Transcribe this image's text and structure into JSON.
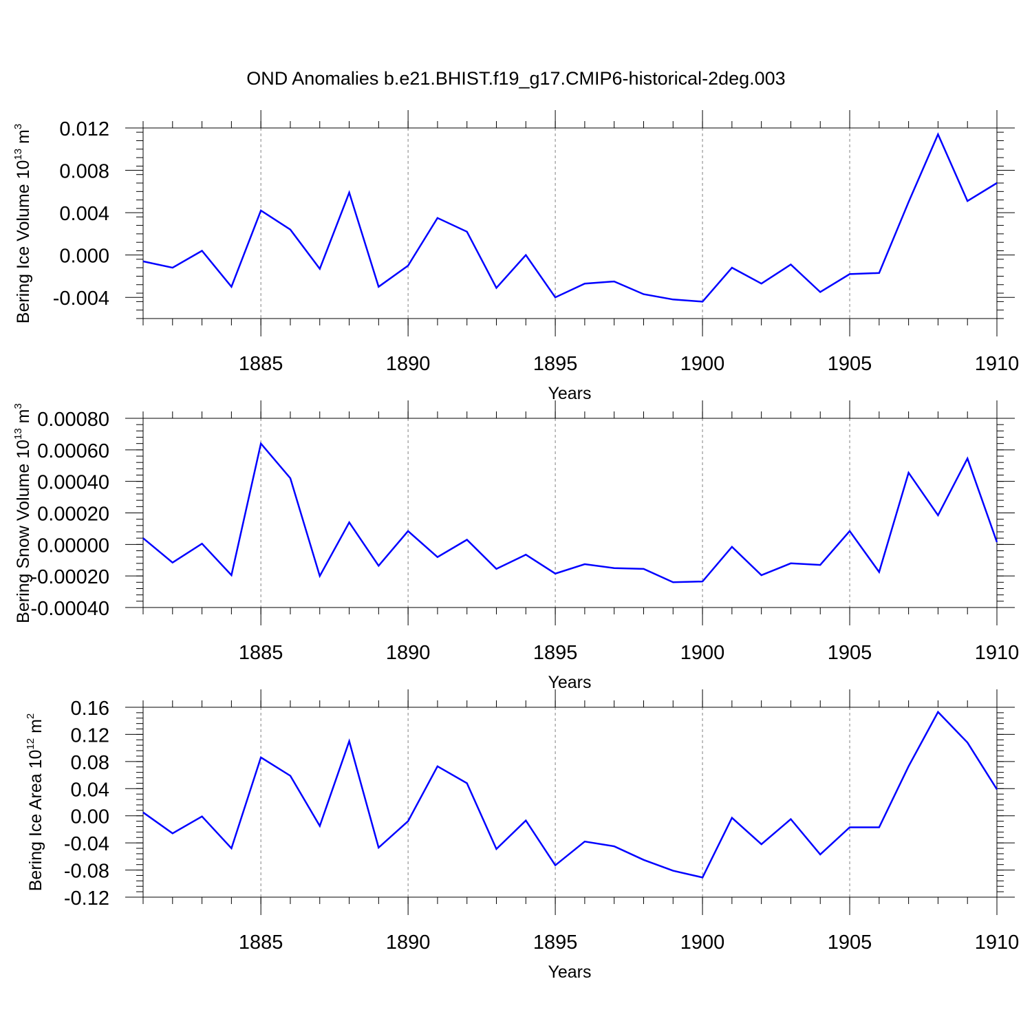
{
  "title": "OND Anomalies b.e21.BHIST.f19_g17.CMIP6-historical-2deg.003",
  "line_color": "#0000ff",
  "chart_data": [
    {
      "type": "line",
      "xlabel": "Years",
      "ylabel_text": "Bering Ice Volume 10",
      "ylabel_exp": "13",
      "ylabel_unit": " m",
      "ylabel_unit_exp": "3",
      "xlim": [
        1881,
        1910
      ],
      "ylim": [
        -0.006,
        0.012
      ],
      "xticks": [
        1885,
        1890,
        1895,
        1900,
        1905,
        1910
      ],
      "xtick_labels": [
        "1885",
        "1890",
        "1895",
        "1900",
        "1905",
        "1910"
      ],
      "yticks": [
        -0.004,
        0.0,
        0.004,
        0.008,
        0.012
      ],
      "ytick_labels": [
        "-0.004",
        "0.000",
        "0.004",
        "0.008",
        "0.012"
      ],
      "x": [
        1881,
        1882,
        1883,
        1884,
        1885,
        1886,
        1887,
        1888,
        1889,
        1890,
        1891,
        1892,
        1893,
        1894,
        1895,
        1896,
        1897,
        1898,
        1899,
        1900,
        1901,
        1902,
        1903,
        1904,
        1905,
        1906,
        1907,
        1908,
        1909,
        1910
      ],
      "series": [
        {
          "values": [
            -0.0006,
            -0.0012,
            0.0004,
            -0.003,
            0.0042,
            0.0024,
            -0.0013,
            0.0059,
            -0.003,
            -0.001,
            0.0035,
            0.0022,
            -0.0031,
            0.0,
            -0.004,
            -0.0027,
            -0.0025,
            -0.0037,
            -0.0042,
            -0.0044,
            -0.0012,
            -0.0027,
            -0.0009,
            -0.0035,
            -0.0018,
            -0.0017,
            0.005,
            0.0114,
            0.0051,
            0.0068
          ]
        }
      ],
      "grid": "vertical dashed at major x ticks",
      "legend": "none"
    },
    {
      "type": "line",
      "xlabel": "Years",
      "ylabel_text": "Bering Snow Volume 10",
      "ylabel_exp": "13",
      "ylabel_unit": " m",
      "ylabel_unit_exp": "3",
      "xlim": [
        1881,
        1910
      ],
      "ylim": [
        -0.0004,
        0.0008
      ],
      "xticks": [
        1885,
        1890,
        1895,
        1900,
        1905,
        1910
      ],
      "xtick_labels": [
        "1885",
        "1890",
        "1895",
        "1900",
        "1905",
        "1910"
      ],
      "yticks": [
        -0.0004,
        -0.0002,
        0.0,
        0.0002,
        0.0004,
        0.0006,
        0.0008
      ],
      "ytick_labels": [
        "-0.00040",
        "-0.00020",
        "0.00000",
        "0.00020",
        "0.00040",
        "0.00060",
        "0.00080"
      ],
      "x": [
        1881,
        1882,
        1883,
        1884,
        1885,
        1886,
        1887,
        1888,
        1889,
        1890,
        1891,
        1892,
        1893,
        1894,
        1895,
        1896,
        1897,
        1898,
        1899,
        1900,
        1901,
        1902,
        1903,
        1904,
        1905,
        1906,
        1907,
        1908,
        1909,
        1910
      ],
      "series": [
        {
          "values": [
            4e-05,
            -0.000115,
            5e-06,
            -0.000195,
            0.00064,
            0.00042,
            -0.0002,
            0.00014,
            -0.000135,
            8.5e-05,
            -8e-05,
            3e-05,
            -0.000155,
            -6.5e-05,
            -0.000185,
            -0.000125,
            -0.00015,
            -0.000155,
            -0.00024,
            -0.000235,
            -1.5e-05,
            -0.000195,
            -0.00012,
            -0.00013,
            8.5e-05,
            -0.000175,
            0.000455,
            0.000185,
            0.000545,
            1.5e-05
          ]
        }
      ],
      "grid": "vertical dashed at major x ticks",
      "legend": "none"
    },
    {
      "type": "line",
      "xlabel": "Years",
      "ylabel_text": "Bering Ice Area 10",
      "ylabel_exp": "12",
      "ylabel_unit": " m",
      "ylabel_unit_exp": "2",
      "xlim": [
        1881,
        1910
      ],
      "ylim": [
        -0.12,
        0.16
      ],
      "xticks": [
        1885,
        1890,
        1895,
        1900,
        1905,
        1910
      ],
      "xtick_labels": [
        "1885",
        "1890",
        "1895",
        "1900",
        "1905",
        "1910"
      ],
      "yticks": [
        -0.12,
        -0.08,
        -0.04,
        0.0,
        0.04,
        0.08,
        0.12,
        0.16
      ],
      "ytick_labels": [
        "-0.12",
        "-0.08",
        "-0.04",
        "0.00",
        "0.04",
        "0.08",
        "0.12",
        "0.16"
      ],
      "x": [
        1881,
        1882,
        1883,
        1884,
        1885,
        1886,
        1887,
        1888,
        1889,
        1890,
        1891,
        1892,
        1893,
        1894,
        1895,
        1896,
        1897,
        1898,
        1899,
        1900,
        1901,
        1902,
        1903,
        1904,
        1905,
        1906,
        1907,
        1908,
        1909,
        1910
      ],
      "series": [
        {
          "values": [
            0.005,
            -0.026,
            -0.001,
            -0.048,
            0.086,
            0.059,
            -0.015,
            0.11,
            -0.047,
            -0.008,
            0.073,
            0.048,
            -0.049,
            -0.007,
            -0.073,
            -0.038,
            -0.045,
            -0.065,
            -0.081,
            -0.091,
            -0.003,
            -0.042,
            -0.005,
            -0.057,
            -0.017,
            -0.017,
            0.073,
            0.153,
            0.108,
            0.039
          ]
        }
      ],
      "grid": "vertical dashed at major x ticks",
      "legend": "none"
    }
  ]
}
